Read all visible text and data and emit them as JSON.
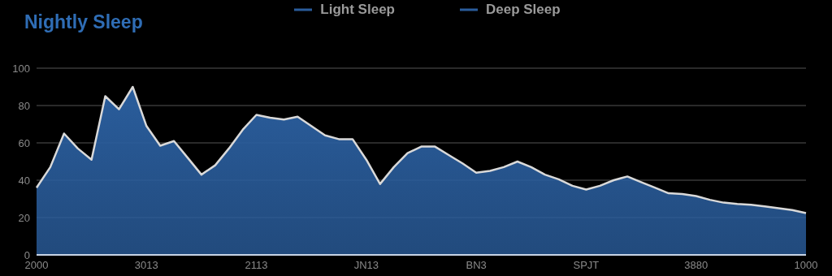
{
  "chart_data": {
    "type": "area",
    "title": "Nightly Sleep",
    "categories": [
      "2000",
      null,
      null,
      null,
      null,
      null,
      null,
      null,
      "3013",
      null,
      null,
      null,
      null,
      null,
      null,
      null,
      "2113",
      null,
      null,
      null,
      null,
      null,
      null,
      null,
      "JN13",
      null,
      null,
      null,
      null,
      null,
      null,
      null,
      "BN3",
      null,
      null,
      null,
      null,
      null,
      null,
      null,
      "SPJT",
      null,
      null,
      null,
      null,
      null,
      null,
      null,
      "3880",
      null,
      null,
      null,
      null,
      null,
      null,
      null,
      "1000"
    ],
    "series": [
      {
        "name": "Light Sleep",
        "color": "#2a5d9c",
        "values": [
          36,
          47,
          65,
          57,
          51,
          85,
          78,
          90,
          69,
          58.5,
          61,
          52,
          43,
          48,
          57,
          67,
          75,
          73.5,
          72.5,
          74,
          69,
          64,
          62,
          62,
          51,
          38,
          47,
          54.5,
          58,
          58,
          53.5,
          49,
          44,
          45,
          47,
          50,
          47,
          43,
          40.5,
          37,
          35,
          37,
          40,
          42,
          39,
          36,
          33,
          32.6,
          31.5,
          29.5,
          28,
          27.3,
          26.8,
          26,
          25,
          24,
          22.4
        ]
      },
      {
        "name": "Deep Sleep",
        "color": "#2a5d9c",
        "values": [
          null,
          null,
          null,
          null,
          null,
          null,
          null,
          null,
          null,
          null,
          null,
          null,
          null,
          null,
          null,
          null,
          null,
          null,
          null,
          null,
          null,
          null,
          null,
          null,
          null,
          null,
          null,
          null,
          null,
          null,
          null,
          null,
          null,
          null,
          null,
          null,
          null,
          null,
          null,
          null,
          null,
          null,
          null,
          null,
          null,
          null,
          null,
          null,
          null,
          null,
          null,
          null,
          null,
          null,
          null,
          null,
          null
        ]
      }
    ],
    "ylim": [
      0,
      100
    ],
    "yticks": [
      0,
      20,
      40,
      60,
      80,
      100
    ],
    "grid": "y",
    "legend": "top",
    "marker": "none"
  }
}
